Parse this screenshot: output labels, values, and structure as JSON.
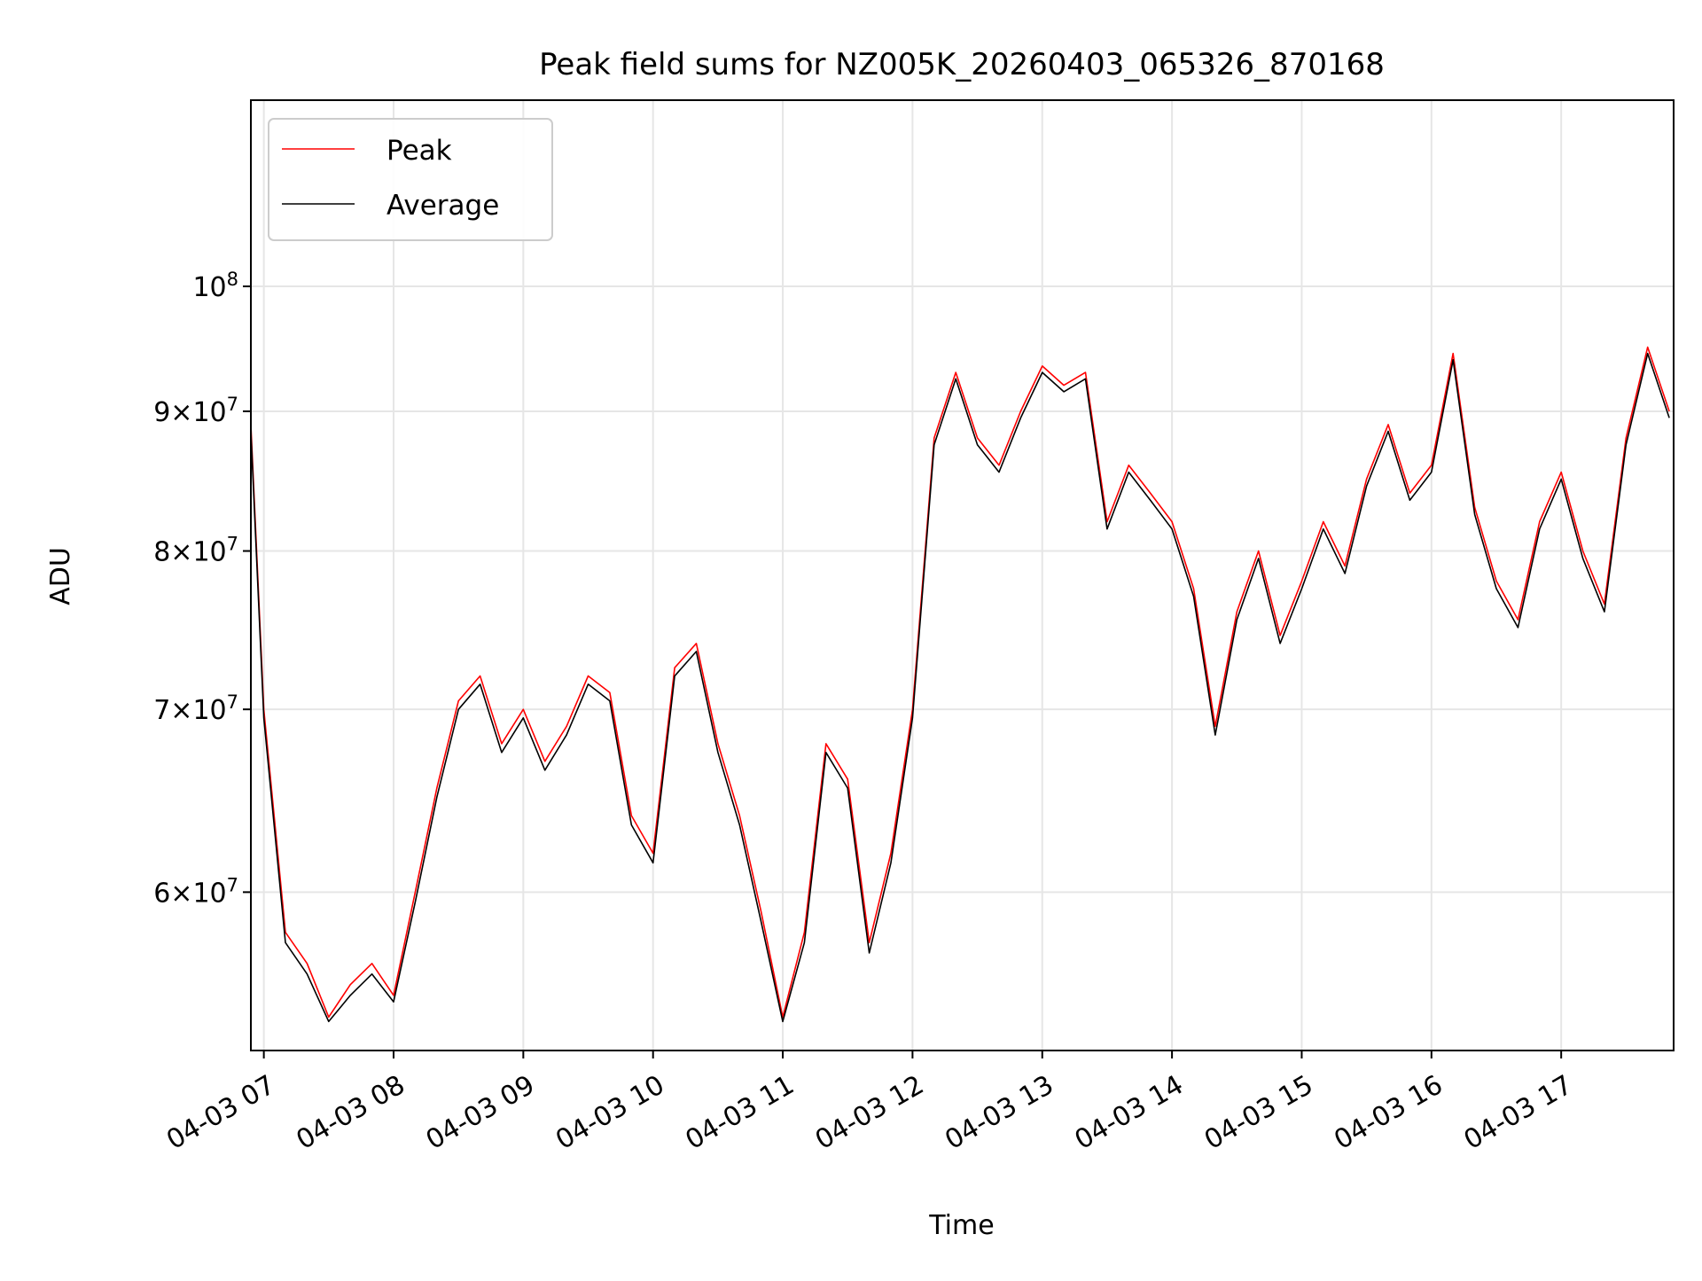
{
  "chart_data": {
    "type": "line",
    "title": "Peak field sums for NZ005K_20260403_065326_870168",
    "xlabel": "Time",
    "ylabel": "ADU",
    "yscale": "log",
    "xlim": [
      "2026-04-03 06:54",
      "2026-04-03 17:52"
    ],
    "ylim": [
      52500000,
      117000000
    ],
    "grid": true,
    "legend": {
      "placement": "top-left",
      "entries": [
        "Peak",
        "Average"
      ]
    },
    "x_tick_labels": [
      "04-03 07",
      "04-03 08",
      "04-03 09",
      "04-03 10",
      "04-03 11",
      "04-03 12",
      "04-03 13",
      "04-03 14",
      "04-03 15",
      "04-03 16",
      "04-03 17"
    ],
    "y_ticks": [
      {
        "value": 60000000,
        "coef": "6",
        "exp": "7"
      },
      {
        "value": 70000000,
        "coef": "7",
        "exp": "7"
      },
      {
        "value": 80000000,
        "coef": "8",
        "exp": "7"
      },
      {
        "value": 90000000,
        "coef": "9",
        "exp": "7"
      },
      {
        "value": 100000000,
        "base": "10",
        "exp": "8"
      }
    ],
    "times": [
      "2026-04-03 06:54",
      "2026-04-03 07:00",
      "2026-04-03 07:10",
      "2026-04-03 07:20",
      "2026-04-03 07:30",
      "2026-04-03 07:40",
      "2026-04-03 07:50",
      "2026-04-03 08:00",
      "2026-04-03 08:10",
      "2026-04-03 08:20",
      "2026-04-03 08:30",
      "2026-04-03 08:40",
      "2026-04-03 08:50",
      "2026-04-03 09:00",
      "2026-04-03 09:10",
      "2026-04-03 09:20",
      "2026-04-03 09:30",
      "2026-04-03 09:40",
      "2026-04-03 09:50",
      "2026-04-03 10:00",
      "2026-04-03 10:10",
      "2026-04-03 10:20",
      "2026-04-03 10:30",
      "2026-04-03 10:40",
      "2026-04-03 10:50",
      "2026-04-03 11:00",
      "2026-04-03 11:10",
      "2026-04-03 11:20",
      "2026-04-03 11:30",
      "2026-04-03 11:40",
      "2026-04-03 11:50",
      "2026-04-03 12:00",
      "2026-04-03 12:10",
      "2026-04-03 12:20",
      "2026-04-03 12:30",
      "2026-04-03 12:40",
      "2026-04-03 12:50",
      "2026-04-03 13:00",
      "2026-04-03 13:10",
      "2026-04-03 13:20",
      "2026-04-03 13:30",
      "2026-04-03 13:40",
      "2026-04-03 13:50",
      "2026-04-03 14:00",
      "2026-04-03 14:10",
      "2026-04-03 14:20",
      "2026-04-03 14:30",
      "2026-04-03 14:40",
      "2026-04-03 14:50",
      "2026-04-03 15:00",
      "2026-04-03 15:10",
      "2026-04-03 15:20",
      "2026-04-03 15:30",
      "2026-04-03 15:40",
      "2026-04-03 15:50",
      "2026-04-03 16:00",
      "2026-04-03 16:10",
      "2026-04-03 16:20",
      "2026-04-03 16:30",
      "2026-04-03 16:40",
      "2026-04-03 16:50",
      "2026-04-03 17:00",
      "2026-04-03 17:10",
      "2026-04-03 17:20",
      "2026-04-03 17:30",
      "2026-04-03 17:40",
      "2026-04-03 17:50"
    ],
    "series": [
      {
        "name": "Peak",
        "color": "#ff0000",
        "values": [
          89000000,
          70000000,
          58000000,
          56500000,
          54000000,
          55500000,
          56500000,
          55000000,
          60000000,
          65500000,
          70500000,
          72000000,
          68000000,
          70000000,
          67000000,
          69000000,
          72000000,
          71000000,
          64000000,
          62000000,
          72500000,
          74000000,
          68000000,
          64000000,
          59000000,
          54000000,
          58000000,
          68000000,
          66000000,
          57500000,
          62000000,
          70000000,
          88000000,
          93000000,
          88000000,
          86000000,
          90000000,
          93500000,
          92000000,
          93000000,
          82000000,
          86000000,
          84000000,
          82000000,
          77500000,
          69000000,
          76000000,
          80000000,
          74500000,
          78000000,
          82000000,
          79000000,
          85000000,
          89000000,
          84000000,
          86000000,
          94500000,
          83000000,
          78000000,
          75500000,
          82000000,
          85500000,
          80000000,
          76500000,
          88000000,
          95000000,
          90000000
        ]
      },
      {
        "name": "Average",
        "color": "#000000",
        "values": [
          88500000,
          69500000,
          57500000,
          56000000,
          53800000,
          55000000,
          56000000,
          54700000,
          59500000,
          65000000,
          70000000,
          71500000,
          67500000,
          69500000,
          66500000,
          68500000,
          71500000,
          70500000,
          63500000,
          61500000,
          72000000,
          73500000,
          67500000,
          63500000,
          58500000,
          53800000,
          57500000,
          67500000,
          65500000,
          57000000,
          61500000,
          69500000,
          87500000,
          92500000,
          87500000,
          85500000,
          89500000,
          93000000,
          91500000,
          92500000,
          81500000,
          85500000,
          83500000,
          81500000,
          77000000,
          68500000,
          75500000,
          79500000,
          74000000,
          77500000,
          81500000,
          78500000,
          84500000,
          88500000,
          83500000,
          85500000,
          94000000,
          82500000,
          77500000,
          75000000,
          81500000,
          85000000,
          79500000,
          76000000,
          87500000,
          94500000,
          89500000
        ]
      }
    ]
  }
}
